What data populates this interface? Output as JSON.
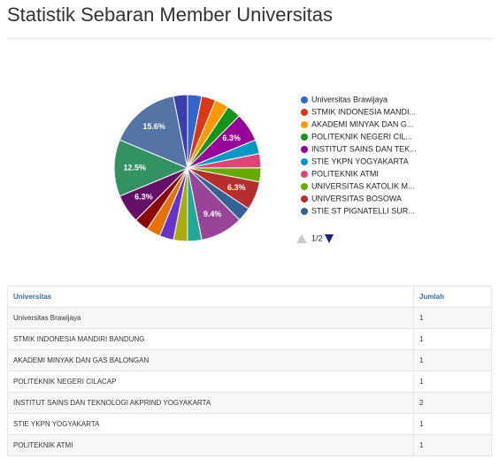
{
  "header": {
    "title": "Statistik Sebaran Member Universitas"
  },
  "chart_data": {
    "type": "pie",
    "categories": [
      "Universitas Brawijaya",
      "STMIK INDONESIA MANDI...",
      "AKADEMI MINYAK DAN G...",
      "POLITEKNIK NEGERI CIL...",
      "INSTITUT SAINS DAN TEK...",
      "STIE YKPN YOGYAKARTA",
      "POLITEKNIK ATMI",
      "UNIVERSITAS KATOLIK M...",
      "UNIVERSITAS BOSOWA",
      "STIE ST PIGNATELLI SUR...",
      null,
      null,
      null,
      null,
      null,
      null,
      null,
      null,
      null,
      null
    ],
    "values": [
      3.1,
      3.1,
      3.1,
      3.1,
      6.3,
      3.1,
      3.1,
      3.1,
      6.3,
      3.1,
      9.4,
      3.1,
      3.1,
      3.1,
      3.1,
      3.1,
      6.3,
      12.5,
      15.6,
      3.1
    ],
    "value_labels": [
      null,
      null,
      null,
      null,
      "6.3%",
      null,
      null,
      null,
      "6.3%",
      null,
      "9.4%",
      null,
      null,
      null,
      null,
      null,
      "6.3%",
      "12.5%",
      "15.6%",
      null
    ],
    "colors": [
      "#3366cc",
      "#dc3912",
      "#ff9900",
      "#109618",
      "#990099",
      "#0099c6",
      "#dd4477",
      "#66aa00",
      "#b82e2e",
      "#316395",
      "#994499",
      "#22aa99",
      "#aaaa11",
      "#6633cc",
      "#e67300",
      "#8b0707",
      "#651067",
      "#329262",
      "#5574a6",
      "#3b3eac"
    ],
    "legend_page": "1/2"
  },
  "table": {
    "columns": [
      "Universitas",
      "Jumlah"
    ],
    "rows": [
      [
        "Universitas Brawijaya",
        1
      ],
      [
        "STMIK INDONESIA MANDIRI BANDUNG",
        1
      ],
      [
        "AKADEMI MINYAK DAN GAS BALONGAN",
        1
      ],
      [
        "POLITEKNIK NEGERI CILACAP",
        1
      ],
      [
        "INSTITUT SAINS DAN TEKNOLOGI AKPRIND YOGYAKARTA",
        2
      ],
      [
        "STIE YKPN YOGYAKARTA",
        1
      ],
      [
        "POLITEKNIK ATMI",
        1
      ]
    ]
  }
}
